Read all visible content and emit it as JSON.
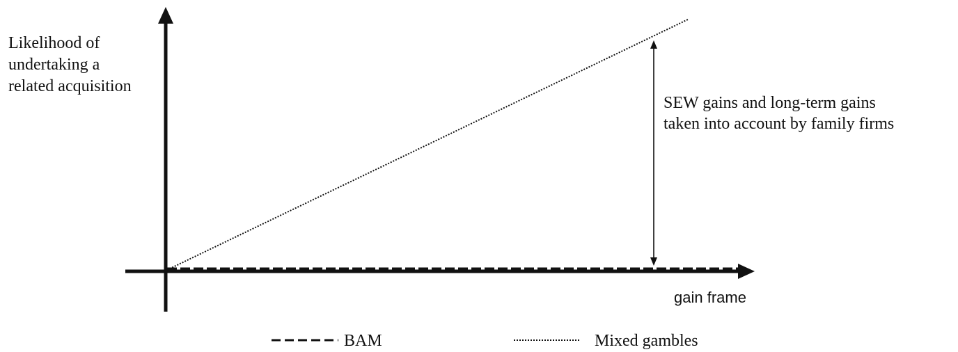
{
  "y_axis_label": [
    "Likelihood of",
    "undertaking a",
    "related acquisition"
  ],
  "x_axis_label": "gain frame",
  "annotation": [
    "SEW gains and long-term gains",
    "taken into account by family firms"
  ],
  "legend": [
    {
      "style": "dashed",
      "label": "BAM"
    },
    {
      "style": "dotted",
      "label": "Mixed gambles"
    }
  ],
  "colors": {
    "ink": "#111111",
    "background": "#ffffff"
  }
}
